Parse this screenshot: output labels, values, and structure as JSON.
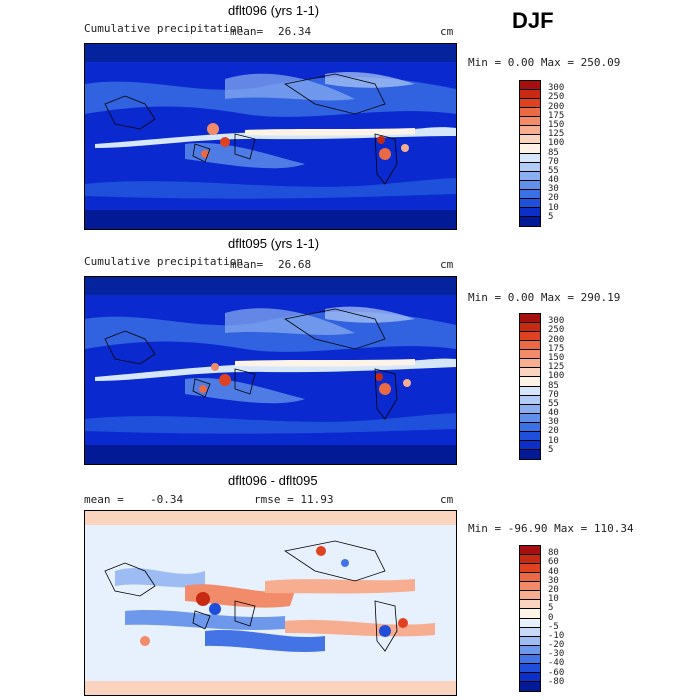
{
  "season": "DJF",
  "panels": [
    {
      "title": "dflt096 (yrs 1-1)",
      "variable": "Cumulative precipitation",
      "stat_label": "mean=",
      "stat_value": "26.34",
      "units": "cm",
      "range_text": "Min =    0.00 Max = 250.09",
      "colorbar": {
        "levels": [
          "300",
          "250",
          "200",
          "175",
          "150",
          "125",
          "100",
          "85",
          "70",
          "55",
          "40",
          "30",
          "20",
          "10",
          "5"
        ],
        "colors": [
          "#a50f0f",
          "#c62a12",
          "#de4221",
          "#ea6a44",
          "#f18b69",
          "#f6ad90",
          "#fbd4c0",
          "#fdf3e7",
          "#d6e6fb",
          "#b3ccf6",
          "#8aaef0",
          "#6090ea",
          "#3b70e4",
          "#1f50db",
          "#0c2fc9",
          "#031a96"
        ]
      }
    },
    {
      "title": "dflt095 (yrs 1-1)",
      "variable": "Cumulative precipitation",
      "stat_label": "mean=",
      "stat_value": "26.68",
      "units": "cm",
      "range_text": "Min =    0.00 Max = 290.19",
      "colorbar": {
        "levels": [
          "300",
          "250",
          "200",
          "175",
          "150",
          "125",
          "100",
          "85",
          "70",
          "55",
          "40",
          "30",
          "20",
          "10",
          "5"
        ],
        "colors": [
          "#a50f0f",
          "#c62a12",
          "#de4221",
          "#ea6a44",
          "#f18b69",
          "#f6ad90",
          "#fbd4c0",
          "#fdf3e7",
          "#d6e6fb",
          "#b3ccf6",
          "#8aaef0",
          "#6090ea",
          "#3b70e4",
          "#1f50db",
          "#0c2fc9",
          "#031a96"
        ]
      }
    },
    {
      "title": "dflt096 - dflt095",
      "variable": "mean =",
      "stat_label": "-0.34",
      "stat_value": "rmse =    11.93",
      "units": "cm",
      "range_text": "Min = -96.90 Max = 110.34",
      "colorbar": {
        "levels": [
          "80",
          "60",
          "40",
          "30",
          "20",
          "10",
          "5",
          "0",
          "-5",
          "-10",
          "-20",
          "-30",
          "-40",
          "-60",
          "-80"
        ],
        "colors": [
          "#a50f0f",
          "#c62a12",
          "#de4221",
          "#ea6a44",
          "#f18b69",
          "#f6ad90",
          "#fbd4c0",
          "#fdf3e7",
          "#e7f0fd",
          "#c7daf8",
          "#9dbcf3",
          "#6e98ec",
          "#4473e5",
          "#1f4fda",
          "#0c2fc9",
          "#031a96"
        ]
      }
    }
  ]
}
